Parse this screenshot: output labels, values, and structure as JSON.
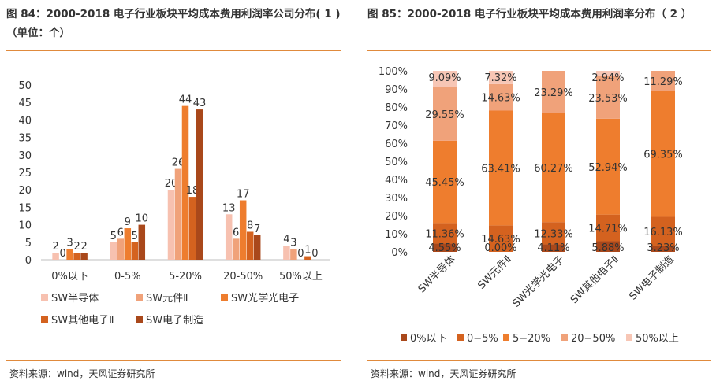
{
  "left": {
    "title_line1": "图 84：2000-2018 电子行业板块平均成本费用利润率公司分布( 1 )",
    "title_line2": "（单位：个）",
    "source": "资料来源：wind，天风证券研究所",
    "colors": [
      "#f7c1b0",
      "#f0a27a",
      "#ee7d2e",
      "#d4621f",
      "#a9481b"
    ]
  },
  "right": {
    "title": "图 85：2000-2018 电子行业板块平均成本费用利润率分布（ 2 ）",
    "source": "资料来源：wind，天风证券研究所",
    "colors": [
      "#a9481b",
      "#d4621f",
      "#ee7d2e",
      "#f0a27a",
      "#f7c6b5"
    ]
  },
  "chart_data": [
    {
      "type": "bar",
      "categories": [
        "0%以下",
        "0-5%",
        "5-20%",
        "20-50%",
        "50%以上"
      ],
      "series": [
        {
          "name": "SW半导体",
          "values": [
            2,
            5,
            20,
            13,
            4
          ]
        },
        {
          "name": "SW元件Ⅱ",
          "values": [
            0,
            6,
            26,
            6,
            3
          ]
        },
        {
          "name": "SW光学光电子",
          "values": [
            3,
            9,
            44,
            17,
            0
          ]
        },
        {
          "name": "SW其他电子Ⅱ",
          "values": [
            2,
            5,
            18,
            8,
            1
          ]
        },
        {
          "name": "SW电子制造",
          "values": [
            2,
            10,
            43,
            7,
            0
          ]
        }
      ],
      "ylim": [
        0,
        50
      ],
      "yticks": [
        0,
        5,
        10,
        15,
        20,
        25,
        30,
        35,
        40,
        45,
        50
      ],
      "legend": "bottom",
      "grid": false
    },
    {
      "type": "bar",
      "stacked": true,
      "categories": [
        "SW半导体",
        "SW元件Ⅱ",
        "SW光学光电子",
        "SW其他电子Ⅱ",
        "SW电子制造"
      ],
      "series": [
        {
          "name": "0%以下",
          "values": [
            4.55,
            0.0,
            4.11,
            5.88,
            3.23
          ],
          "labels": [
            "4.55%",
            "0.00%",
            "4.11%",
            "5.88%",
            "3.23%"
          ]
        },
        {
          "name": "0−5%",
          "values": [
            11.36,
            14.63,
            12.33,
            14.71,
            16.13
          ],
          "labels": [
            "11.36%",
            "14.63%",
            "12.33%",
            "14.71%",
            "16.13%"
          ]
        },
        {
          "name": "5−20%",
          "values": [
            45.45,
            63.41,
            60.27,
            52.94,
            69.35
          ],
          "labels": [
            "45.45%",
            "63.41%",
            "60.27%",
            "52.94%",
            "69.35%"
          ]
        },
        {
          "name": "20−50%",
          "values": [
            29.55,
            14.63,
            23.29,
            23.53,
            11.29
          ],
          "labels": [
            "29.55%",
            "14.63%",
            "23.29%",
            "23.53%",
            "11.29%"
          ]
        },
        {
          "name": "50%以上",
          "values": [
            9.09,
            7.32,
            0,
            2.94,
            0
          ],
          "labels": [
            "9.09%",
            "7.32%",
            "",
            "2.94%",
            ""
          ]
        }
      ],
      "ylim": [
        0,
        100
      ],
      "yticks": [
        "0%",
        "10%",
        "20%",
        "30%",
        "40%",
        "50%",
        "60%",
        "70%",
        "80%",
        "90%",
        "100%"
      ],
      "legend": "bottom",
      "grid": false
    }
  ]
}
